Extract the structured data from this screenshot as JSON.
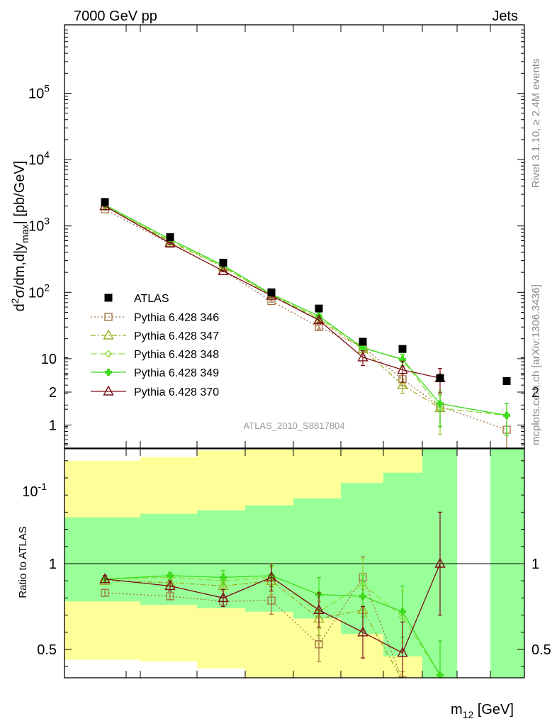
{
  "header": {
    "left": "7000 GeV pp",
    "right": "Jets"
  },
  "side_labels": {
    "top": "Rivet 3.1.10, ≥ 2.4M events",
    "bottom": "mcplots.cern.ch [arXiv:1306.3436]"
  },
  "analysis_tag": "ATLAS_2010_S8817804",
  "colors": {
    "data": "#000000",
    "p346": "#a0713e",
    "p347": "#9aad1f",
    "p348": "#8fdc3a",
    "p349": "#3cdc1c",
    "p370": "#7a0f14",
    "band_outer": "#ffff99",
    "band_inner": "#99ff99"
  },
  "chart_data": [
    {
      "type": "line",
      "panel": "main",
      "ylabel": "d²σ/dm,d|y_max| [pb/GeV]",
      "xlabel": "m12 [GeV]",
      "yscale": "log",
      "ylim": [
        0.05,
        100000
      ],
      "y_ticks": [
        "10^-1",
        "1",
        "10",
        "10^2",
        "10^3",
        "10^4",
        "10^5"
      ],
      "legend": {
        "placement": "left",
        "entries": [
          "ATLAS",
          "Pythia 6.428 346",
          "Pythia 6.428 347",
          "Pythia 6.428 348",
          "Pythia 6.428 349",
          "Pythia 6.428 370"
        ]
      },
      "x_bins": [
        1,
        2,
        3,
        4,
        5,
        6,
        7,
        8,
        9
      ],
      "series": [
        {
          "name": "ATLAS",
          "key": "data",
          "marker": "square-filled",
          "values": [
            2300,
            680,
            280,
            100,
            57,
            18,
            14,
            5.1,
            4.6
          ]
        },
        {
          "name": "Pythia 6.428 346",
          "key": "p346",
          "marker": "square-open",
          "dash": "2,3",
          "values": [
            1780,
            540,
            210,
            74,
            30,
            15,
            4.9,
            1.9,
            0.85
          ],
          "err": [
            0.03,
            0.03,
            0.03,
            0.04,
            0.07,
            0.12,
            0.2,
            0.5,
            0.7
          ]
        },
        {
          "name": "Pythia 6.428 347",
          "key": "p347",
          "marker": "triangle-open",
          "dash": "7,3,2,3",
          "values": [
            2000,
            580,
            240,
            90,
            39,
            14,
            4.0,
            1.8,
            null
          ],
          "err": [
            0.03,
            0.03,
            0.03,
            0.04,
            0.07,
            0.12,
            0.25,
            0.6,
            0
          ]
        },
        {
          "name": "Pythia 6.428 348",
          "key": "p348",
          "marker": "diamond-open",
          "dash": "9,4",
          "values": [
            2060,
            600,
            245,
            92,
            41,
            15,
            9.5,
            1.8,
            1.4
          ],
          "err": [
            0.03,
            0.03,
            0.03,
            0.04,
            0.07,
            0.1,
            0.2,
            0.6,
            0.5
          ]
        },
        {
          "name": "Pythia 6.428 349",
          "key": "p349",
          "marker": "cross-filled",
          "dash": "",
          "values": [
            2080,
            630,
            255,
            94,
            44,
            14.5,
            9.8,
            2.1,
            1.4
          ],
          "err": [
            0.03,
            0.03,
            0.03,
            0.04,
            0.07,
            0.1,
            0.2,
            0.55,
            0.5
          ]
        },
        {
          "name": "Pythia 6.428 370",
          "key": "p370",
          "marker": "triangle-open",
          "dash": "",
          "values": [
            2000,
            550,
            210,
            89,
            38,
            10.5,
            6.8,
            5.1,
            null
          ],
          "err": [
            0.03,
            0.03,
            0.03,
            0.05,
            0.08,
            0.25,
            0.35,
            0.4,
            0
          ]
        }
      ]
    },
    {
      "type": "line",
      "panel": "ratio",
      "ylabel": "Ratio to ATLAS",
      "ylim": [
        0.33,
        2.25
      ],
      "y_ticks": [
        "0.5",
        "1",
        "2"
      ],
      "x_bins": [
        1,
        2,
        3,
        4,
        5,
        6,
        7,
        8,
        9
      ],
      "bands": {
        "outer_lo": [
          0.44,
          0.43,
          0.39,
          0.33,
          0.33,
          0.33,
          0.33,
          0.33,
          0.33
        ],
        "outer_hi": [
          1.6,
          1.62,
          1.66,
          1.7,
          1.74,
          1.87,
          1.91,
          2.2,
          2.2
        ],
        "inner_lo": [
          0.78,
          0.76,
          0.74,
          0.72,
          0.68,
          0.59,
          0.46,
          0.33,
          0.33
        ],
        "inner_hi": [
          1.27,
          1.29,
          1.31,
          1.34,
          1.38,
          1.47,
          1.53,
          1.71,
          1.72
        ],
        "present": [
          true,
          true,
          true,
          true,
          true,
          true,
          true,
          true,
          true
        ]
      },
      "series": [
        {
          "key": "p346",
          "marker": "square-open",
          "dash": "2,3",
          "values": [
            0.83,
            0.81,
            0.78,
            0.785,
            0.53,
            0.92,
            0.32,
            null,
            null
          ],
          "err": [
            0.02,
            0.02,
            0.03,
            0.08,
            0.1,
            0.12,
            0.05,
            0,
            0
          ]
        },
        {
          "key": "p347",
          "marker": "triangle-open",
          "dash": "7,3,2,3",
          "values": [
            0.9,
            0.89,
            0.87,
            0.9,
            0.68,
            0.73,
            0.32,
            null,
            null
          ],
          "err": [
            0.02,
            0.02,
            0.03,
            0.08,
            0.1,
            0.12,
            0.05,
            0,
            0
          ]
        },
        {
          "key": "p348",
          "marker": "diamond-open",
          "dash": "9,4",
          "values": [
            0.91,
            0.92,
            0.9,
            0.92,
            0.72,
            0.88,
            0.69,
            0.35,
            null
          ],
          "err": [
            0.02,
            0.02,
            0.04,
            0.07,
            0.1,
            0.15,
            0.15,
            0.2,
            0
          ]
        },
        {
          "key": "p349",
          "marker": "cross-filled",
          "dash": "",
          "values": [
            0.91,
            0.93,
            0.92,
            0.93,
            0.82,
            0.81,
            0.72,
            0.35,
            null
          ],
          "err": [
            0.02,
            0.02,
            0.04,
            0.06,
            0.1,
            0.12,
            0.15,
            0.2,
            0
          ]
        },
        {
          "key": "p370",
          "marker": "triangle-open",
          "dash": "",
          "values": [
            0.91,
            0.87,
            0.8,
            0.92,
            0.73,
            0.6,
            0.48,
            1.0,
            null
          ],
          "err": [
            0.02,
            0.03,
            0.05,
            0.08,
            0.1,
            0.15,
            0.18,
            0.3,
            0
          ]
        }
      ]
    }
  ]
}
